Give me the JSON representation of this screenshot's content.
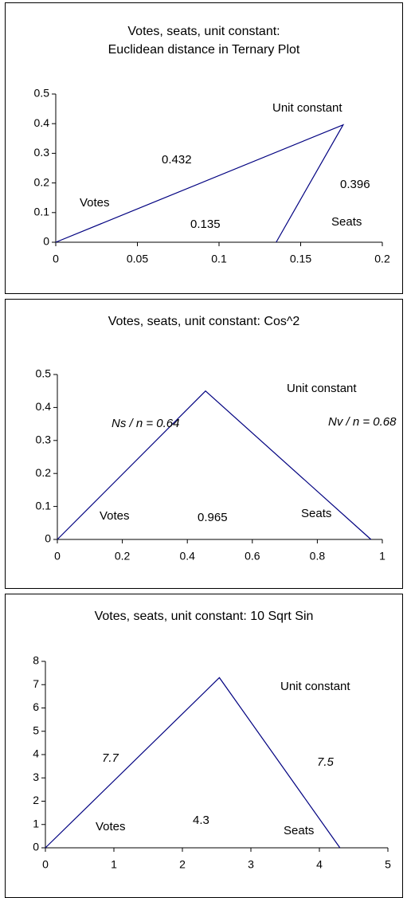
{
  "chart_data": [
    {
      "type": "line",
      "title": [
        "Votes, seats, unit constant:",
        "Euclidean distance in Ternary Plot"
      ],
      "x": [
        0,
        0.176,
        0.135
      ],
      "values": [
        0,
        0.396,
        0
      ],
      "color": "#000080",
      "xlim": [
        0,
        0.2
      ],
      "xticks": [
        0,
        0.05,
        0.1,
        0.15,
        0.2
      ],
      "ylim": [
        0,
        0.5
      ],
      "yticks": [
        0,
        0.1,
        0.2,
        0.3,
        0.4,
        0.5
      ],
      "annotations": [
        "Unit constant",
        "0.432",
        "0.396",
        "Votes",
        "0.135",
        "Seats"
      ]
    },
    {
      "type": "line",
      "title": [
        "Votes, seats, unit constant: Cos^2"
      ],
      "x": [
        0,
        0.456,
        0.965
      ],
      "values": [
        0,
        0.45,
        0
      ],
      "color": "#000080",
      "xlim": [
        0,
        1
      ],
      "xticks": [
        0,
        0.2,
        0.4,
        0.6,
        0.8,
        1
      ],
      "ylim": [
        0,
        0.5
      ],
      "yticks": [
        0,
        0.1,
        0.2,
        0.3,
        0.4,
        0.5
      ],
      "annotations": [
        "Unit constant",
        "Ns / n = 0.64",
        "Nv / n = 0.68",
        "Votes",
        "0.965",
        "Seats"
      ]
    },
    {
      "type": "line",
      "title": [
        "Votes, seats, unit constant: 10 Sqrt Sin"
      ],
      "x": [
        0,
        2.54,
        4.3
      ],
      "values": [
        0,
        7.3,
        0
      ],
      "color": "#000080",
      "xlim": [
        0,
        5
      ],
      "xticks": [
        0,
        1,
        2,
        3,
        4,
        5
      ],
      "ylim": [
        0,
        8
      ],
      "yticks": [
        0,
        1,
        2,
        3,
        4,
        5,
        6,
        7,
        8
      ],
      "annotations": [
        "Unit constant",
        "7.7",
        "7.5",
        "Votes",
        "4.3",
        "Seats"
      ]
    }
  ]
}
